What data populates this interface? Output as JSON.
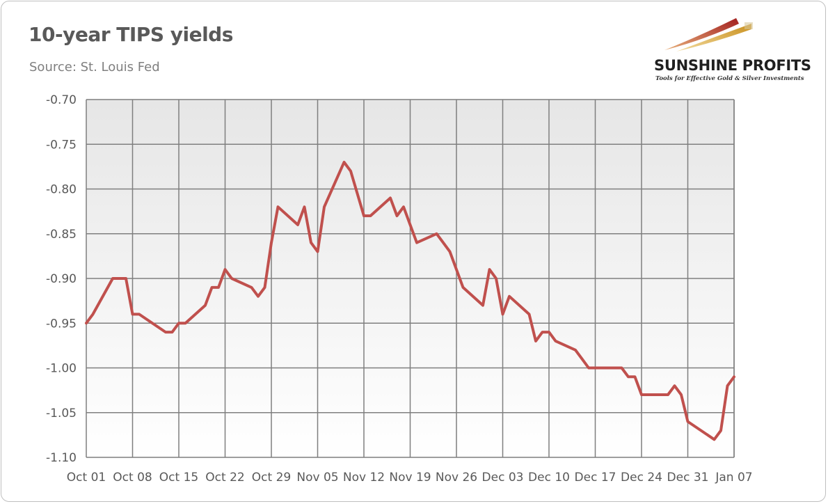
{
  "header": {
    "title": "10-year TIPS yields",
    "source": "Source: St. Louis Fed"
  },
  "logo": {
    "name_part1": "SUNSHINE",
    "name_part2": " PROFITS",
    "tagline": "Tools for Effective Gold & Silver Investments",
    "colors": {
      "red": "#b02a2a",
      "gold": "#d9a441"
    }
  },
  "colors": {
    "line": "#c0504d",
    "plot_bg_top": "#e6e6e6",
    "plot_bg_bottom": "#ffffff",
    "grid": "#7f7f7f"
  },
  "chart_data": {
    "type": "line",
    "title": "10-year TIPS yields",
    "subtitle": "Source: St. Louis Fed",
    "xlabel": "",
    "ylabel": "",
    "x_range": [
      "Oct 01",
      "Jan 07"
    ],
    "ylim": [
      -1.1,
      -0.7
    ],
    "y_ticks": [
      -0.7,
      -0.75,
      -0.8,
      -0.85,
      -0.9,
      -0.95,
      -1.0,
      -1.05,
      -1.1
    ],
    "y_tick_labels": [
      "-0.70",
      "-0.75",
      "-0.80",
      "-0.85",
      "-0.90",
      "-0.95",
      "-1.00",
      "-1.05",
      "-1.10"
    ],
    "x_tick_labels": [
      "Oct 01",
      "Oct 08",
      "Oct 15",
      "Oct 22",
      "Oct 29",
      "Nov 05",
      "Nov 12",
      "Nov 19",
      "Nov 26",
      "Dec 03",
      "Dec 10",
      "Dec 17",
      "Dec 24",
      "Dec 31",
      "Jan 07"
    ],
    "grid": true,
    "legend": "none",
    "series": [
      {
        "points": [
          [
            "Oct 01",
            -0.95
          ],
          [
            "Oct 02",
            -0.94
          ],
          [
            "Oct 05",
            -0.9
          ],
          [
            "Oct 06",
            -0.9
          ],
          [
            "Oct 07",
            -0.9
          ],
          [
            "Oct 08",
            -0.94
          ],
          [
            "Oct 09",
            -0.94
          ],
          [
            "Oct 13",
            -0.96
          ],
          [
            "Oct 14",
            -0.96
          ],
          [
            "Oct 15",
            -0.95
          ],
          [
            "Oct 16",
            -0.95
          ],
          [
            "Oct 19",
            -0.93
          ],
          [
            "Oct 20",
            -0.91
          ],
          [
            "Oct 21",
            -0.91
          ],
          [
            "Oct 22",
            -0.89
          ],
          [
            "Oct 23",
            -0.9
          ],
          [
            "Oct 26",
            -0.91
          ],
          [
            "Oct 27",
            -0.92
          ],
          [
            "Oct 28",
            -0.91
          ],
          [
            "Oct 29",
            -0.86
          ],
          [
            "Oct 30",
            -0.82
          ],
          [
            "Nov 02",
            -0.84
          ],
          [
            "Nov 03",
            -0.82
          ],
          [
            "Nov 04",
            -0.86
          ],
          [
            "Nov 05",
            -0.87
          ],
          [
            "Nov 06",
            -0.82
          ],
          [
            "Nov 09",
            -0.77
          ],
          [
            "Nov 10",
            -0.78
          ],
          [
            "Nov 12",
            -0.83
          ],
          [
            "Nov 13",
            -0.83
          ],
          [
            "Nov 16",
            -0.81
          ],
          [
            "Nov 17",
            -0.83
          ],
          [
            "Nov 18",
            -0.82
          ],
          [
            "Nov 19",
            -0.84
          ],
          [
            "Nov 20",
            -0.86
          ],
          [
            "Nov 23",
            -0.85
          ],
          [
            "Nov 24",
            -0.86
          ],
          [
            "Nov 25",
            -0.87
          ],
          [
            "Nov 27",
            -0.91
          ],
          [
            "Nov 30",
            -0.93
          ],
          [
            "Dec 01",
            -0.89
          ],
          [
            "Dec 02",
            -0.9
          ],
          [
            "Dec 03",
            -0.94
          ],
          [
            "Dec 04",
            -0.92
          ],
          [
            "Dec 07",
            -0.94
          ],
          [
            "Dec 08",
            -0.97
          ],
          [
            "Dec 09",
            -0.96
          ],
          [
            "Dec 10",
            -0.96
          ],
          [
            "Dec 11",
            -0.97
          ],
          [
            "Dec 14",
            -0.98
          ],
          [
            "Dec 15",
            -0.99
          ],
          [
            "Dec 16",
            -1.0
          ],
          [
            "Dec 17",
            -1.0
          ],
          [
            "Dec 18",
            -1.0
          ],
          [
            "Dec 21",
            -1.0
          ],
          [
            "Dec 22",
            -1.01
          ],
          [
            "Dec 23",
            -1.01
          ],
          [
            "Dec 24",
            -1.03
          ],
          [
            "Dec 28",
            -1.03
          ],
          [
            "Dec 29",
            -1.02
          ],
          [
            "Dec 30",
            -1.03
          ],
          [
            "Dec 31",
            -1.06
          ],
          [
            "Jan 04",
            -1.08
          ],
          [
            "Jan 05",
            -1.07
          ],
          [
            "Jan 06",
            -1.02
          ],
          [
            "Jan 07",
            -1.01
          ]
        ]
      }
    ]
  }
}
